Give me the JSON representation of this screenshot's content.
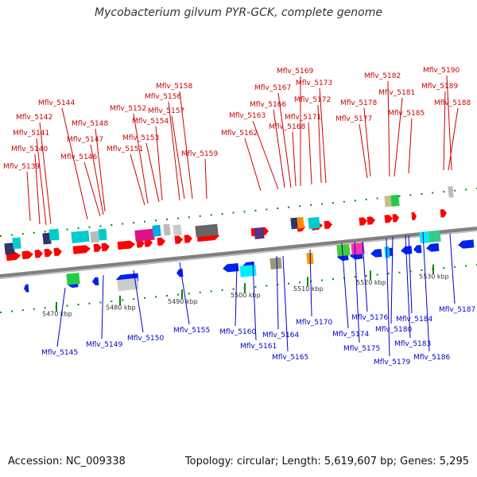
{
  "title": "Mycobacterium gilvum PYR-GCK, complete genome",
  "accession": "Accession: NC_009338",
  "summary": "Topology: circular; Length: 5,619,607 bp; Genes: 5,295",
  "colors": {
    "forward_label": "#cc0000",
    "reverse_label": "#0000cc",
    "forward_gene": "#ff0000",
    "reverse_gene": "#0022ee",
    "backbone": "#808080",
    "tick": "#008800"
  },
  "scale_labels": [
    "5470 kbp",
    "5480 kbp",
    "5490 kbp",
    "5500 kbp",
    "5510 kbp",
    "5520 kbp",
    "5530 kbp"
  ],
  "forward_genes": [
    "Mflv_5139",
    "Mflv_5140",
    "Mflv_5141",
    "Mflv_5142",
    "Mflv_5144",
    "Mflv_5146",
    "Mflv_5147",
    "Mflv_5148",
    "Mflv_5151",
    "Mflv_5152",
    "Mflv_5153",
    "Mflv_5154",
    "Mflv_5156",
    "Mflv_5157",
    "Mflv_5158",
    "Mflv_5159",
    "Mflv_5162",
    "Mflv_5163",
    "Mflv_5166",
    "Mflv_5167",
    "Mflv_5168",
    "Mflv_5169",
    "Mflv_5171",
    "Mflv_5172",
    "Mflv_5173",
    "Mflv_5177",
    "Mflv_5178",
    "Mflv_5181",
    "Mflv_5182",
    "Mflv_5185",
    "Mflv_5188",
    "Mflv_5189",
    "Mflv_5190"
  ],
  "reverse_genes": [
    "Mflv_5145",
    "Mflv_5149",
    "Mflv_5150",
    "Mflv_5155",
    "Mflv_5160",
    "Mflv_5161",
    "Mflv_5164",
    "Mflv_5165",
    "Mflv_5170",
    "Mflv_5174",
    "Mflv_5175",
    "Mflv_5176",
    "Mflv_5179",
    "Mflv_5180",
    "Mflv_5183",
    "Mflv_5184",
    "Mflv_5186",
    "Mflv_5187"
  ]
}
